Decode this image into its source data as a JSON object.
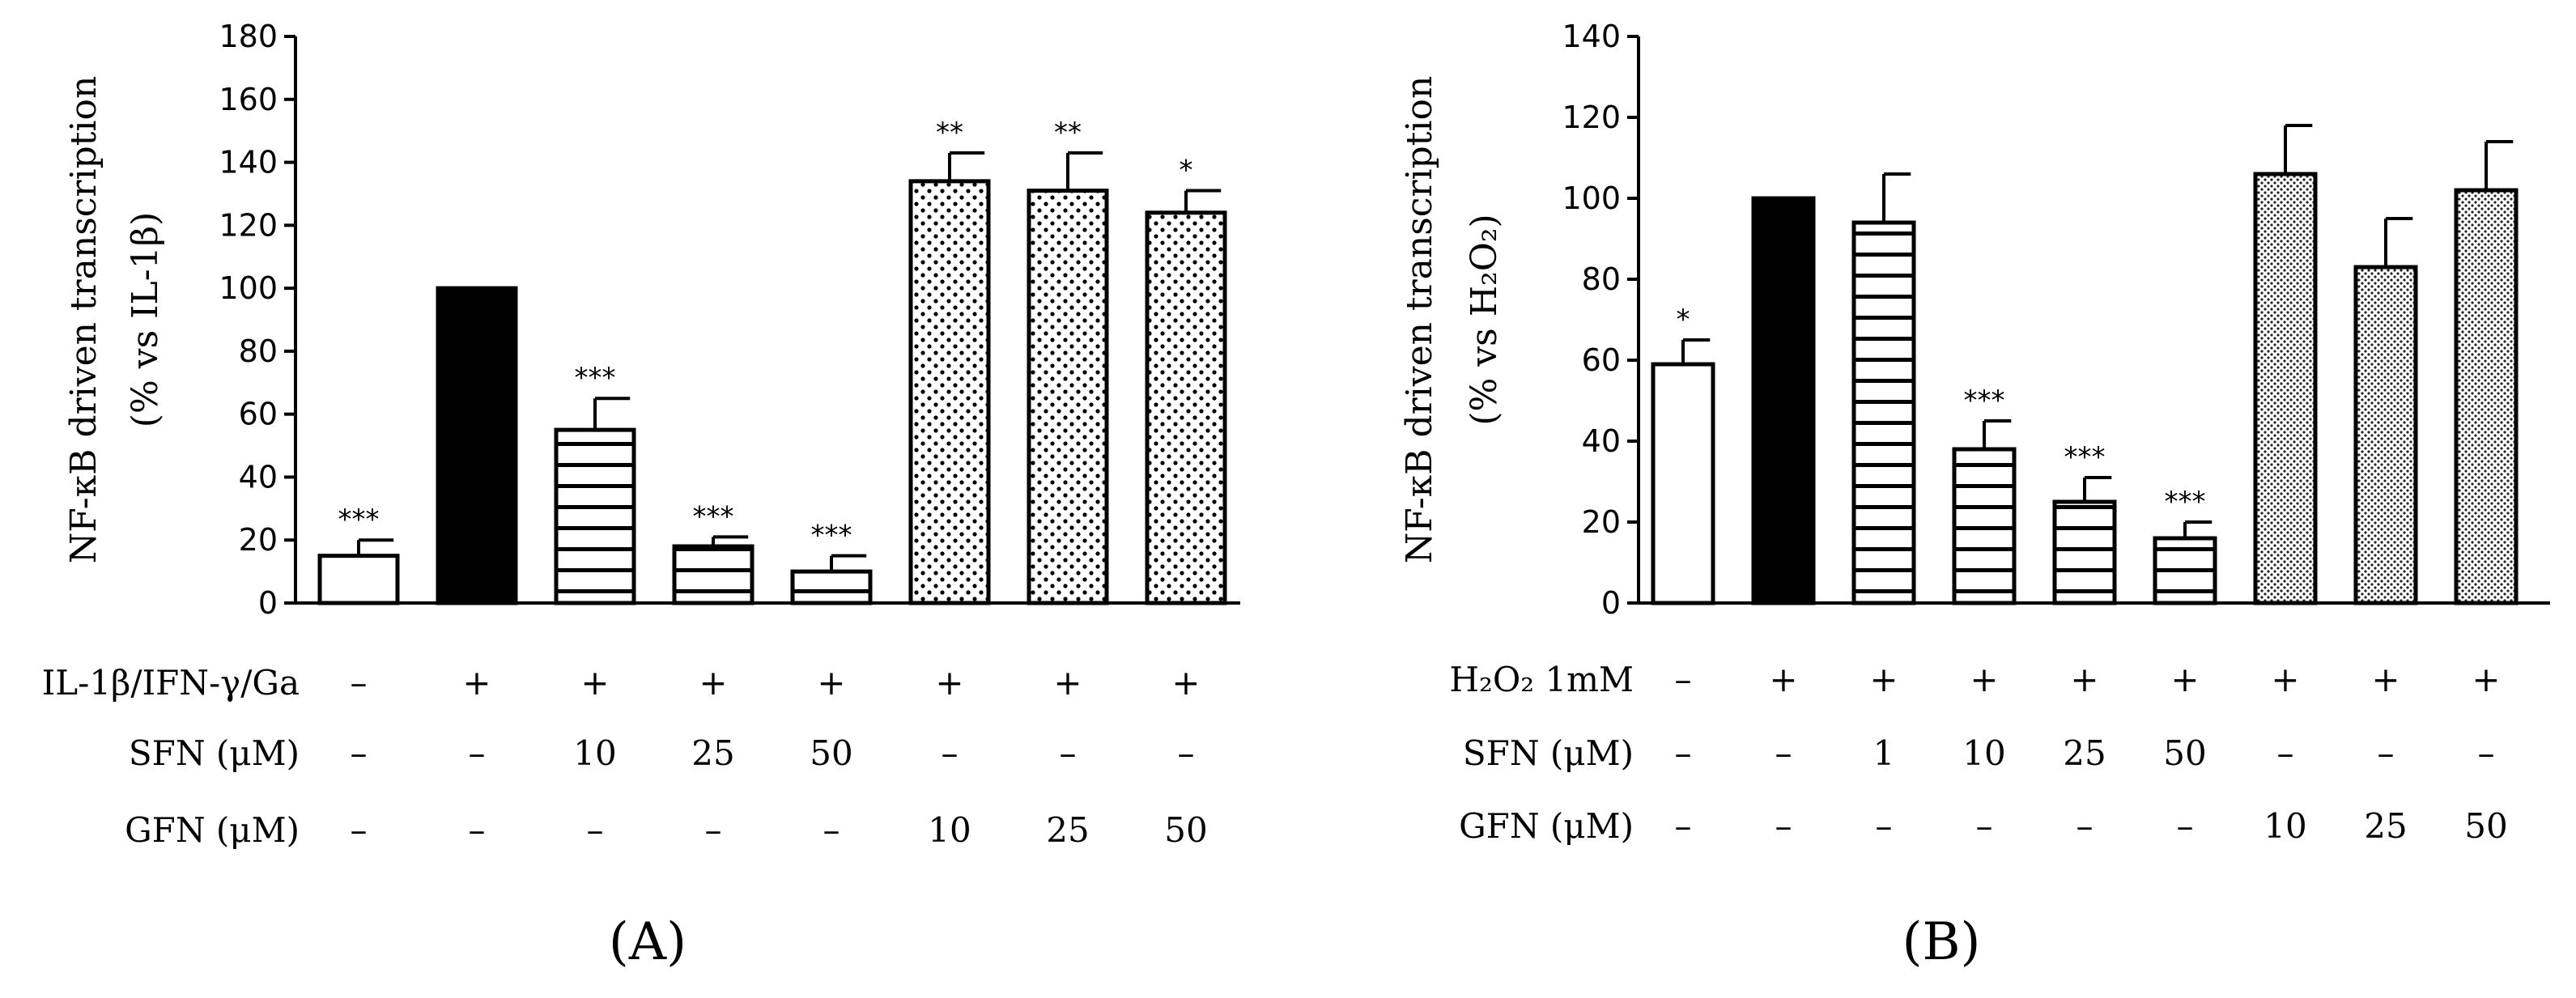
{
  "chart_data": [
    {
      "type": "bar",
      "panel_label": "A",
      "ylabel_line1": "NF-κB driven transcription",
      "ylabel_line2": "(% vs IL-1β)",
      "ylim": [
        0,
        180
      ],
      "yticks": [
        "0",
        "20",
        "40",
        "60",
        "80",
        "100",
        "120",
        "140",
        "160",
        "180"
      ],
      "values": [
        15,
        100,
        55,
        18,
        10,
        134,
        131,
        124
      ],
      "errors": [
        5,
        0,
        10,
        3,
        5,
        9,
        12,
        7
      ],
      "significance": [
        "***",
        "",
        "***",
        "***",
        "***",
        "**",
        "**",
        "*"
      ],
      "fills": [
        "white",
        "solid",
        "hstripe",
        "hstripe",
        "hstripe",
        "dots",
        "dots",
        "dots"
      ],
      "rows": [
        {
          "label": "IL-1β/IFN-γ/Ga",
          "values": [
            "–",
            "+",
            "+",
            "+",
            "+",
            "+",
            "+",
            "+"
          ]
        },
        {
          "label": "SFN (μM)",
          "values": [
            "–",
            "–",
            "10",
            "25",
            "50",
            "–",
            "–",
            "–"
          ]
        },
        {
          "label": "GFN (μM)",
          "values": [
            "–",
            "–",
            "–",
            "–",
            "–",
            "10",
            "25",
            "50"
          ]
        }
      ]
    },
    {
      "type": "bar",
      "panel_label": "B",
      "ylabel_line1": "NF-κB driven transcription",
      "ylabel_line2": "(% vs H₂O₂)",
      "ylim": [
        0,
        140
      ],
      "yticks": [
        "0",
        "20",
        "40",
        "60",
        "80",
        "100",
        "120",
        "140"
      ],
      "values": [
        59,
        100,
        94,
        38,
        25,
        16,
        106,
        83,
        102
      ],
      "errors": [
        6,
        0,
        12,
        7,
        6,
        4,
        12,
        12,
        12
      ],
      "significance": [
        "*",
        "",
        "",
        "***",
        "***",
        "***",
        "",
        "",
        ""
      ],
      "fills": [
        "white",
        "solid",
        "hstripe",
        "hstripe",
        "hstripe",
        "hstripe",
        "fine",
        "fine",
        "fine"
      ],
      "rows": [
        {
          "label": "H₂O₂ 1mM",
          "values": [
            "–",
            "+",
            "+",
            "+",
            "+",
            "+",
            "+",
            "+",
            "+"
          ]
        },
        {
          "label": "SFN (μM)",
          "values": [
            "–",
            "–",
            "1",
            "10",
            "25",
            "50",
            "–",
            "–",
            "–"
          ]
        },
        {
          "label": "GFN (μM)",
          "values": [
            "–",
            "–",
            "–",
            "–",
            "–",
            "–",
            "10",
            "25",
            "50"
          ]
        }
      ]
    }
  ]
}
